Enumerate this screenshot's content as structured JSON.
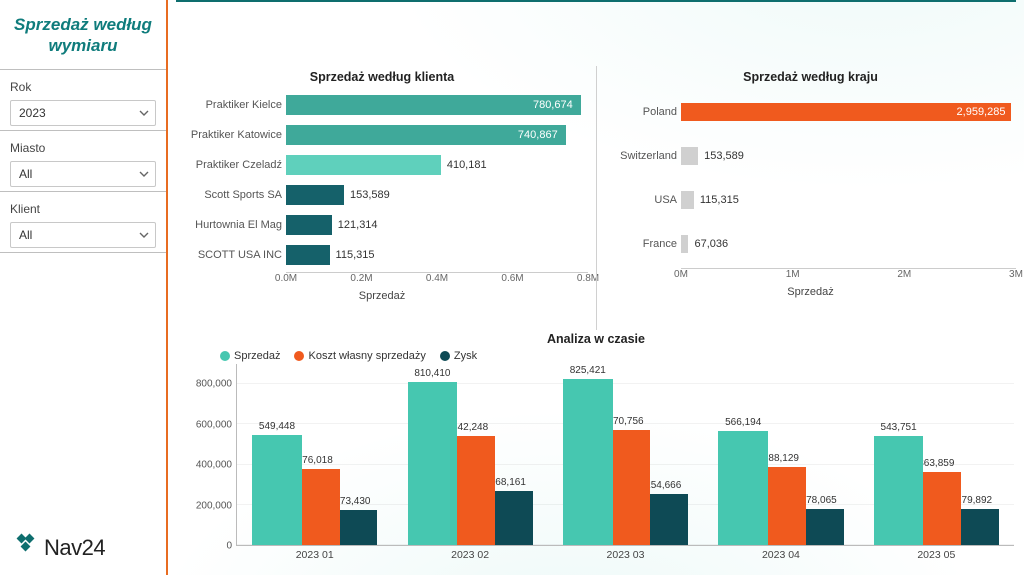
{
  "title": "Sprzedaż według wymiaru",
  "filters": {
    "year": {
      "label": "Rok",
      "value": "2023"
    },
    "city": {
      "label": "Miasto",
      "value": "All"
    },
    "client": {
      "label": "Klient",
      "value": "All"
    }
  },
  "logo_text": "Nav24",
  "client_chart": {
    "type": "bar_horizontal",
    "title": "Sprzedaż według klienta",
    "axis_label": "Sprzedaż",
    "max": 800000,
    "ticks": [
      {
        "pos": 0,
        "label": "0.0M"
      },
      {
        "pos": 200000,
        "label": "0.2M"
      },
      {
        "pos": 400000,
        "label": "0.4M"
      },
      {
        "pos": 600000,
        "label": "0.6M"
      },
      {
        "pos": 800000,
        "label": "0.8M"
      }
    ],
    "bars": [
      {
        "label": "Praktiker Kielce",
        "value": 780674,
        "value_label": "780,674",
        "color": "#3fa99a"
      },
      {
        "label": "Praktiker Katowice",
        "value": 740867,
        "value_label": "740,867",
        "color": "#3fa99a"
      },
      {
        "label": "Praktiker Czeladź",
        "value": 410181,
        "value_label": "410,181",
        "color": "#5fd0bc"
      },
      {
        "label": "Scott Sports SA",
        "value": 153589,
        "value_label": "153,589",
        "color": "#15616a"
      },
      {
        "label": "Hurtownia El Mag",
        "value": 121314,
        "value_label": "121,314",
        "color": "#15616a"
      },
      {
        "label": "SCOTT USA INC",
        "value": 115315,
        "value_label": "115,315",
        "color": "#15616a"
      }
    ]
  },
  "country_chart": {
    "type": "bar_horizontal",
    "title": "Sprzedaż według kraju",
    "axis_label": "Sprzedaż",
    "max": 3000000,
    "ticks": [
      {
        "pos": 0,
        "label": "0M"
      },
      {
        "pos": 1000000,
        "label": "1M"
      },
      {
        "pos": 2000000,
        "label": "2M"
      },
      {
        "pos": 3000000,
        "label": "3M"
      }
    ],
    "bars": [
      {
        "label": "Poland",
        "value": 2959285,
        "value_label": "2,959,285",
        "color": "#f05a1e"
      },
      {
        "label": "Switzerland",
        "value": 153589,
        "value_label": "153,589",
        "color": "#d0d0d0"
      },
      {
        "label": "USA",
        "value": 115315,
        "value_label": "115,315",
        "color": "#d0d0d0"
      },
      {
        "label": "France",
        "value": 67036,
        "value_label": "67,036",
        "color": "#d0d0d0"
      }
    ]
  },
  "time_chart": {
    "type": "grouped_bar",
    "title": "Analiza w czasie",
    "series": [
      {
        "name": "Sprzedaż",
        "color": "#46c7b0"
      },
      {
        "name": "Koszt własny sprzedaży",
        "color": "#f05a1e"
      },
      {
        "name": "Zysk",
        "color": "#0e4a55"
      }
    ],
    "ymax": 900000,
    "yticks": [
      {
        "v": 0,
        "label": "0"
      },
      {
        "v": 200000,
        "label": "200,000"
      },
      {
        "v": 400000,
        "label": "400,000"
      },
      {
        "v": 600000,
        "label": "600,000"
      },
      {
        "v": 800000,
        "label": "800,000"
      }
    ],
    "groups": [
      {
        "label": "2023 01",
        "values": [
          549448,
          376018,
          173430
        ],
        "value_labels": [
          "549,448",
          "376,018",
          "173,430"
        ]
      },
      {
        "label": "2023 02",
        "values": [
          810410,
          542248,
          268161
        ],
        "value_labels": [
          "810,410",
          "542,248",
          "268,161"
        ]
      },
      {
        "label": "2023 03",
        "values": [
          825421,
          570756,
          254666
        ],
        "value_labels": [
          "825,421",
          "570,756",
          "254,666"
        ]
      },
      {
        "label": "2023 04",
        "values": [
          566194,
          388129,
          178065
        ],
        "value_labels": [
          "566,194",
          "388,129",
          "178,065"
        ]
      },
      {
        "label": "2023 05",
        "values": [
          543751,
          363859,
          179892
        ],
        "value_labels": [
          "543,751",
          "363,859",
          "179,892"
        ]
      }
    ]
  }
}
